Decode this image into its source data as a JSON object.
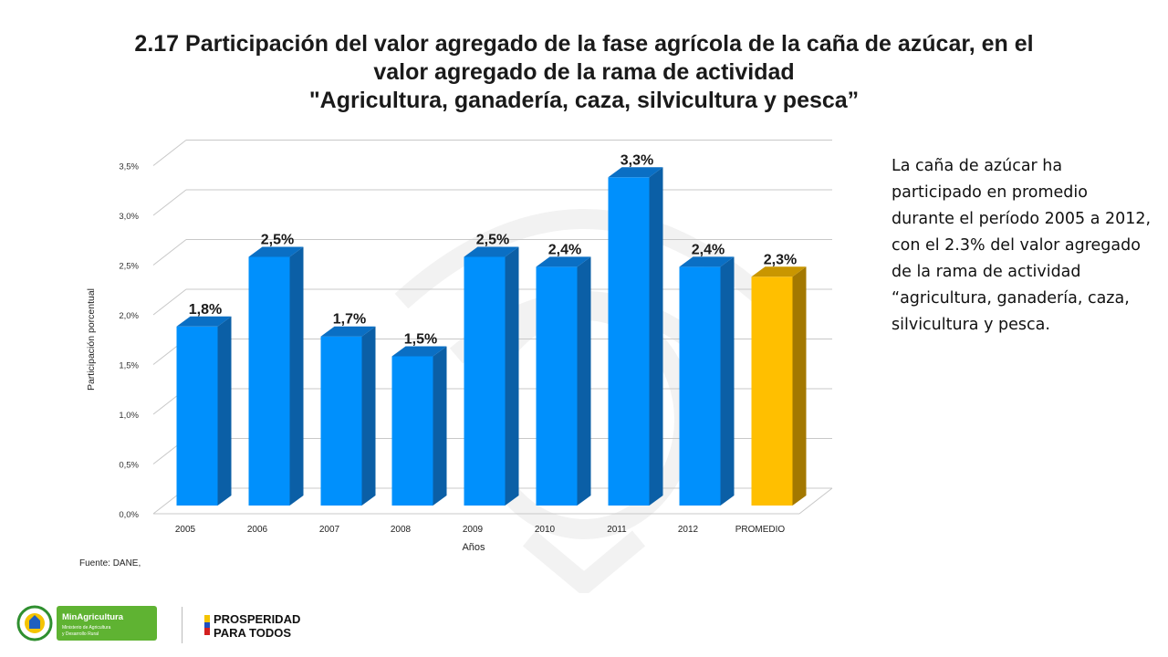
{
  "title": {
    "line1": "2.17 Participación del valor agregado de la fase agrícola de la caña de azúcar, en el",
    "line2": "valor agregado de la rama de actividad",
    "line3": "\"Agricultura, ganadería, caza, silvicultura y pesca”"
  },
  "side_text": "La caña de azúcar ha participado en promedio durante el período 2005 a 2012, con el  2.3% del valor agregado de la rama de actividad “agricultura, ganadería, caza, silvicultura y pesca.",
  "source": "Fuente: DANE,",
  "logos": {
    "min_name": "MinAgricultura",
    "min_sub1": "Ministerio de Agricultura",
    "min_sub2": "y Desarrollo Rural",
    "prosp_line1": "PROSPERIDAD",
    "prosp_line2": "PARA TODOS"
  },
  "colors": {
    "bar_front": "#0090fc",
    "bar_side": "#0b5fa6",
    "bar_top": "#0a6fc4",
    "avg_front": "#ffbf00",
    "avg_side": "#a37800",
    "avg_top": "#c99600",
    "grid": "#c8c8c8"
  },
  "chart_data": {
    "type": "bar",
    "categories": [
      "2005",
      "2006",
      "2007",
      "2008",
      "2009",
      "2010",
      "2011",
      "2012",
      "PROMEDIO"
    ],
    "values": [
      1.8,
      2.5,
      1.7,
      1.5,
      2.5,
      2.4,
      3.3,
      2.4,
      2.3
    ],
    "data_labels": [
      "1,8%",
      "2,5%",
      "1,7%",
      "1,5%",
      "2,5%",
      "2,4%",
      "3,3%",
      "2,4%",
      "2,3%"
    ],
    "highlight_index": 8,
    "xlabel": "Años",
    "ylabel": "Participación porcentual",
    "ylim": [
      0,
      3.5
    ],
    "yticks": [
      "0,0%",
      "0,5%",
      "1,0%",
      "1,5%",
      "2,0%",
      "2,5%",
      "3,0%",
      "3,5%"
    ],
    "grid": true,
    "style": "3d"
  }
}
